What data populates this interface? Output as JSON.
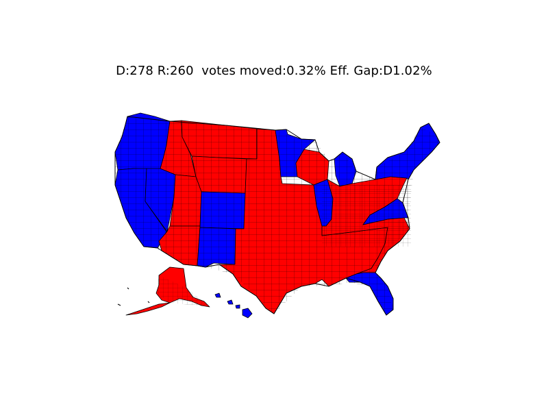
{
  "title": "D:278 R:260  votes moved:0.32% Eff. Gap:D1.02%",
  "colors": {
    "dem": "#0000ff",
    "rep": "#ff0000",
    "border": "#000000",
    "background": "#ffffff"
  },
  "regions": [
    {
      "name": "pacific-northwest-west",
      "party": "dem"
    },
    {
      "name": "california",
      "party": "dem"
    },
    {
      "name": "nevada",
      "party": "dem"
    },
    {
      "name": "idaho",
      "party": "rep"
    },
    {
      "name": "montana",
      "party": "rep"
    },
    {
      "name": "wyoming",
      "party": "rep"
    },
    {
      "name": "utah",
      "party": "rep"
    },
    {
      "name": "arizona",
      "party": "rep"
    },
    {
      "name": "colorado",
      "party": "dem"
    },
    {
      "name": "new-mexico",
      "party": "dem"
    },
    {
      "name": "great-plains-and-south",
      "party": "rep"
    },
    {
      "name": "minnesota",
      "party": "dem"
    },
    {
      "name": "wisconsin",
      "party": "rep"
    },
    {
      "name": "illinois",
      "party": "dem"
    },
    {
      "name": "michigan",
      "party": "dem"
    },
    {
      "name": "ohio-valley-and-southeast",
      "party": "rep"
    },
    {
      "name": "florida",
      "party": "dem"
    },
    {
      "name": "virginia",
      "party": "dem"
    },
    {
      "name": "northeast",
      "party": "dem"
    },
    {
      "name": "alaska",
      "party": "rep"
    },
    {
      "name": "hawaii",
      "party": "dem"
    }
  ]
}
